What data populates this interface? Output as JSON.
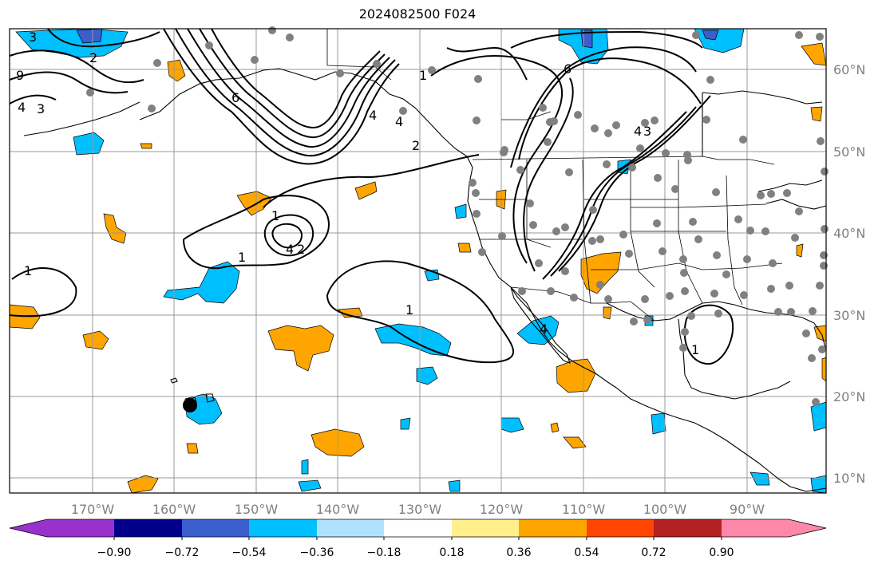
{
  "title": "2024082500 F024",
  "lon_labels": [
    "170°W",
    "160°W",
    "150°W",
    "140°W",
    "130°W",
    "120°W",
    "110°W",
    "100°W",
    "90°W"
  ],
  "lat_labels": [
    "60°N",
    "50°N",
    "40°N",
    "30°N",
    "20°N",
    "10°N"
  ],
  "colorbar": {
    "tick_labels": [
      "−0.90",
      "−0.72",
      "−0.54",
      "−0.36",
      "−0.18",
      "0.18",
      "0.36",
      "0.54",
      "0.72",
      "0.90"
    ],
    "colors": [
      "#9932cc",
      "#00008b",
      "#3a5fcd",
      "#00bfff",
      "#b0e2ff",
      "#ffffff",
      "#fff08c",
      "#ffa500",
      "#ff4500",
      "#b22222",
      "#ff88aa"
    ]
  },
  "contour_labels": {
    "c1": "3",
    "c2": "2",
    "c3": "9",
    "c4": "4",
    "c5": "3",
    "c6": "6",
    "c7": "4",
    "c8": "2",
    "c9": "1",
    "c10": "4",
    "c11": "1",
    "c12": "4",
    "c13": "2",
    "c14": "1",
    "c15": "1",
    "c16": "1",
    "c17": "6",
    "c18": "4",
    "c19": "3",
    "c20": "4",
    "c21": "1"
  },
  "fill_colors": {
    "orange": "#ffa500",
    "blue": "#00bfff",
    "darkblue": "#3a5fcd",
    "points": "#808080"
  }
}
